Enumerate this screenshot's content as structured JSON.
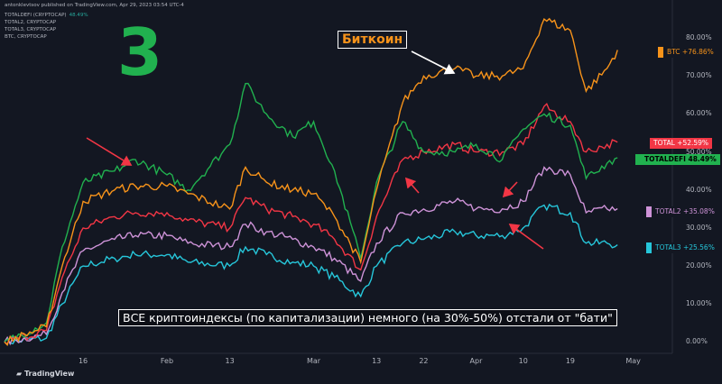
{
  "header": {
    "publisher": "antonklevtsov published on TradingView.com, Apr 29, 2023 03:54 UTC-4",
    "lines": [
      {
        "text": "TOTALDEFI (CRYPTOCAP)",
        "value": "48.49%"
      },
      {
        "text": "TOTAL2, CRYPTOCAP",
        "value": ""
      },
      {
        "text": "TOTAL3, CRYPTOCAP",
        "value": ""
      },
      {
        "text": "BTC, CRYPTOCAP",
        "value": ""
      }
    ]
  },
  "annotations": {
    "big_number": "3",
    "callout": "Биткоин",
    "caption": "ВСЕ криптоиндексы (по капитализации) немного (на 30%-50%) отстали от \"бати\""
  },
  "branding": {
    "logo_text": "TradingView"
  },
  "colors": {
    "btc": "#f7931a",
    "total": "#f23645",
    "totaldefi": "#21b14f",
    "total2": "#ce93d8",
    "total3": "#26c6da",
    "background": "#131722",
    "arrow": "#f23645"
  },
  "chart_data": {
    "type": "line",
    "title": "",
    "xlabel": "",
    "ylabel": "",
    "ylim": [
      -3,
      90
    ],
    "y_ticks": [
      "80.00%",
      "70.00%",
      "60.00%",
      "50.00%",
      "40.00%",
      "30.00%",
      "20.00%",
      "10.00%",
      "0.00%"
    ],
    "y_tick_values": [
      80,
      70,
      60,
      50,
      40,
      30,
      20,
      10,
      0
    ],
    "x_ticks": [
      "16",
      "Feb",
      "13",
      "Mar",
      "13",
      "22",
      "Apr",
      "10",
      "19",
      "May"
    ],
    "x": [
      "Jan 1",
      "Jan 9",
      "Jan 12",
      "Jan 16",
      "Jan 22",
      "Jan 26",
      "Feb 1",
      "Feb 5",
      "Feb 13",
      "Feb 16",
      "Feb 20",
      "Feb 25",
      "Mar 1",
      "Mar 5",
      "Mar 10",
      "Mar 13",
      "Mar 18",
      "Mar 22",
      "Mar 28",
      "Apr 1",
      "Apr 6",
      "Apr 10",
      "Apr 14",
      "Apr 19",
      "Apr 22",
      "Apr 26",
      "Apr 28"
    ],
    "series": [
      {
        "name": "BTC",
        "label": "BTC +76.86%",
        "color_key": "btc",
        "values": [
          0,
          4,
          20,
          37,
          40,
          41,
          41,
          39,
          35,
          46,
          42,
          40,
          39,
          33,
          21,
          40,
          63,
          70,
          72,
          70,
          70,
          72,
          85,
          82,
          66,
          72,
          76.86
        ]
      },
      {
        "name": "TOTAL",
        "label": "TOTAL +52.59%",
        "color_key": "total",
        "values": [
          0,
          3,
          17,
          30,
          33,
          34,
          34,
          32,
          30,
          38,
          35,
          33,
          31,
          27,
          19,
          33,
          48,
          50,
          52,
          50,
          50,
          52,
          62,
          58,
          50,
          52,
          52.59
        ]
      },
      {
        "name": "TOTALDEFI",
        "label": "TOTALDEFI 48.49%",
        "color_key": "totaldefi",
        "values": [
          0,
          5,
          25,
          42,
          45,
          48,
          44,
          40,
          52,
          68,
          60,
          54,
          58,
          45,
          22,
          42,
          58,
          50,
          50,
          52,
          48,
          56,
          60,
          57,
          43,
          47,
          48.49
        ]
      },
      {
        "name": "TOTAL2",
        "label": "TOTAL2 +35.08%",
        "color_key": "total2",
        "values": [
          0,
          2,
          13,
          24,
          27,
          28,
          28,
          26,
          25,
          31,
          29,
          27,
          25,
          22,
          16,
          26,
          34,
          35,
          37,
          35,
          35,
          37,
          46,
          44,
          34,
          35,
          35.08
        ]
      },
      {
        "name": "TOTAL3",
        "label": "TOTAL3 +25.56%",
        "color_key": "total3",
        "values": [
          0,
          1,
          10,
          20,
          22,
          23,
          23,
          21,
          20,
          25,
          23,
          21,
          20,
          17,
          12,
          20,
          26,
          27,
          29,
          28,
          28,
          30,
          36,
          34,
          26,
          26,
          25.56
        ]
      }
    ],
    "grid": false,
    "legend": "right-axis labels"
  }
}
